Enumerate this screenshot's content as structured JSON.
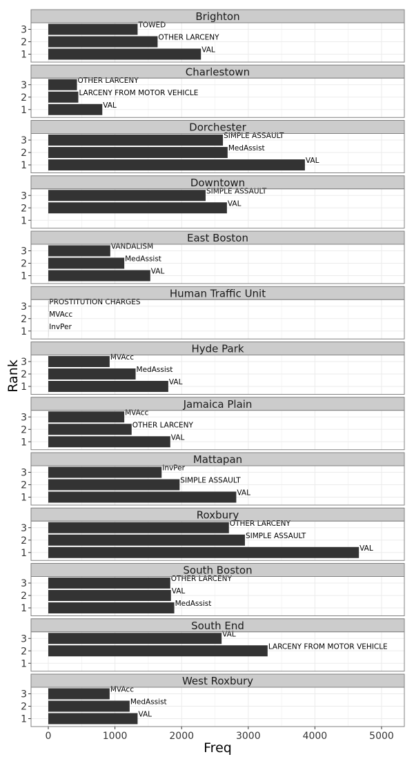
{
  "chart_data": {
    "type": "bar",
    "orientation": "horizontal",
    "facet_by": "district",
    "xlabel": "Freq",
    "ylabel": "Rank",
    "xlim": [
      0,
      5200
    ],
    "x_ticks": [
      0,
      1000,
      2000,
      3000,
      4000,
      5000
    ],
    "y_ticks": [
      1,
      2,
      3
    ],
    "grid": true,
    "bar_color": "#333333",
    "strip_color": "#cccccc",
    "panel_border_color": "#7f7f7f",
    "grid_color": "#ebebeb",
    "panels": [
      {
        "title": "Brighton",
        "bars": [
          {
            "rank": 3,
            "label": "TOWED",
            "value": 1340
          },
          {
            "rank": 2,
            "label": "OTHER LARCENY",
            "value": 1640
          },
          {
            "rank": 1,
            "label": "VAL",
            "value": 2290
          }
        ]
      },
      {
        "title": "Charlestown",
        "bars": [
          {
            "rank": 3,
            "label": "OTHER LARCENY",
            "value": 430
          },
          {
            "rank": 2,
            "label": "LARCENY FROM MOTOR VEHICLE",
            "value": 450
          },
          {
            "rank": 1,
            "label": "VAL",
            "value": 810
          }
        ]
      },
      {
        "title": "Dorchester",
        "bars": [
          {
            "rank": 3,
            "label": "SIMPLE ASSAULT",
            "value": 2620
          },
          {
            "rank": 2,
            "label": "MedAssist",
            "value": 2690
          },
          {
            "rank": 1,
            "label": "VAL",
            "value": 3850
          }
        ]
      },
      {
        "title": "Downtown",
        "bars": [
          {
            "rank": 3,
            "label": "SIMPLE ASSAULT",
            "value": 2360
          },
          {
            "rank": 2,
            "label": "VAL",
            "value": 2680
          },
          {
            "rank": 1,
            "label": "",
            "value": 0
          }
        ]
      },
      {
        "title": "East Boston",
        "bars": [
          {
            "rank": 3,
            "label": "VANDALISM",
            "value": 930
          },
          {
            "rank": 2,
            "label": "MedAssist",
            "value": 1140
          },
          {
            "rank": 1,
            "label": "VAL",
            "value": 1530
          }
        ]
      },
      {
        "title": "Human Traffic Unit",
        "bars": [
          {
            "rank": 3,
            "label": "PROSTITUTION CHARGES",
            "value": 3
          },
          {
            "rank": 2,
            "label": "MVAcc",
            "value": 1
          },
          {
            "rank": 1,
            "label": "InvPer",
            "value": 1
          }
        ]
      },
      {
        "title": "Hyde Park",
        "bars": [
          {
            "rank": 3,
            "label": "MVAcc",
            "value": 920
          },
          {
            "rank": 2,
            "label": "MedAssist",
            "value": 1310
          },
          {
            "rank": 1,
            "label": "VAL",
            "value": 1800
          }
        ]
      },
      {
        "title": "Jamaica Plain",
        "bars": [
          {
            "rank": 3,
            "label": "MVAcc",
            "value": 1140
          },
          {
            "rank": 2,
            "label": "OTHER LARCENY",
            "value": 1250
          },
          {
            "rank": 1,
            "label": "VAL",
            "value": 1830
          }
        ]
      },
      {
        "title": "Mattapan",
        "bars": [
          {
            "rank": 3,
            "label": "InvPer",
            "value": 1700
          },
          {
            "rank": 2,
            "label": "SIMPLE ASSAULT",
            "value": 1970
          },
          {
            "rank": 1,
            "label": "VAL",
            "value": 2820
          }
        ]
      },
      {
        "title": "Roxbury",
        "bars": [
          {
            "rank": 3,
            "label": "OTHER LARCENY",
            "value": 2710
          },
          {
            "rank": 2,
            "label": "SIMPLE ASSAULT",
            "value": 2950
          },
          {
            "rank": 1,
            "label": "VAL",
            "value": 4660
          }
        ]
      },
      {
        "title": "South Boston",
        "bars": [
          {
            "rank": 3,
            "label": "OTHER LARCENY",
            "value": 1830
          },
          {
            "rank": 2,
            "label": "VAL",
            "value": 1840
          },
          {
            "rank": 1,
            "label": "MedAssist",
            "value": 1890
          }
        ]
      },
      {
        "title": "South End",
        "bars": [
          {
            "rank": 3,
            "label": "VAL",
            "value": 2600
          },
          {
            "rank": 2,
            "label": "LARCENY FROM MOTOR VEHICLE",
            "value": 3290
          },
          {
            "rank": 1,
            "label": "",
            "value": 0
          }
        ]
      },
      {
        "title": "West Roxbury",
        "bars": [
          {
            "rank": 3,
            "label": "MVAcc",
            "value": 920
          },
          {
            "rank": 2,
            "label": "MedAssist",
            "value": 1220
          },
          {
            "rank": 1,
            "label": "VAL",
            "value": 1340
          }
        ]
      }
    ]
  }
}
